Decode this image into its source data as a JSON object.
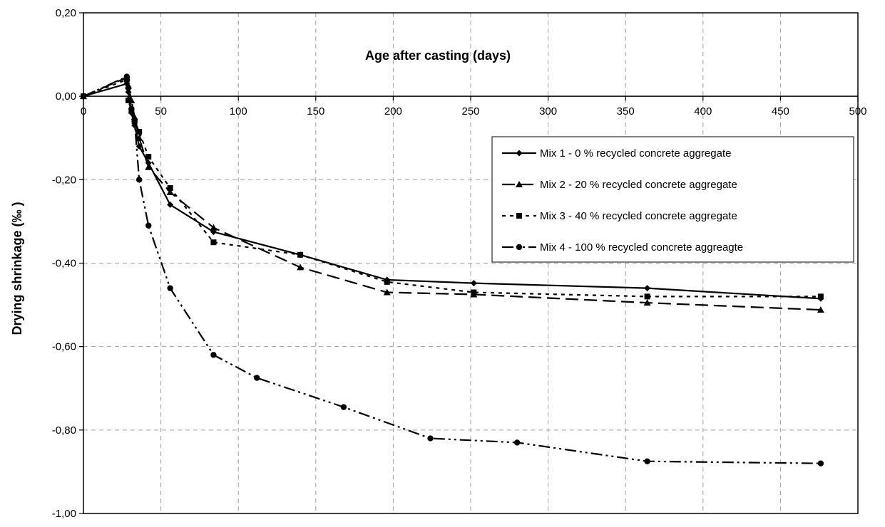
{
  "chart_data": {
    "type": "line",
    "title": "",
    "xlabel": "Age after casting (days)",
    "ylabel": "Drying shrinkage (‰ )",
    "xlim": [
      0,
      500
    ],
    "ylim": [
      -1.0,
      0.2
    ],
    "x_ticks": [
      0,
      50,
      100,
      150,
      200,
      250,
      300,
      350,
      400,
      450,
      500
    ],
    "x_tick_labels": [
      "0",
      "50",
      "100",
      "150",
      "200",
      "250",
      "300",
      "350",
      "400",
      "450",
      "500"
    ],
    "y_ticks": [
      0.2,
      0.0,
      -0.2,
      -0.4,
      -0.6,
      -0.8,
      -1.0
    ],
    "y_tick_labels": [
      "0,20",
      "0,00",
      "-0,20",
      "-0,40",
      "-0,60",
      "-0,80",
      "-1,00"
    ],
    "grid": true,
    "legend_position": "upper-right",
    "series": [
      {
        "name": "Mix 1 - 0 % recycled concrete aggregate",
        "marker": "diamond",
        "line_style": "solid",
        "x": [
          0,
          28,
          29,
          31,
          33,
          36,
          42,
          56,
          84,
          140,
          196,
          252,
          364,
          476
        ],
        "y": [
          0.0,
          0.03,
          0.01,
          -0.04,
          -0.07,
          -0.12,
          -0.16,
          -0.26,
          -0.325,
          -0.38,
          -0.44,
          -0.448,
          -0.46,
          -0.485
        ]
      },
      {
        "name": "Mix 2 - 20 % recycled concrete aggregate",
        "marker": "triangle",
        "line_style": "long-dash",
        "x": [
          0,
          28,
          29,
          31,
          33,
          36,
          42,
          56,
          84,
          140,
          196,
          252,
          364,
          476
        ],
        "y": [
          0.0,
          0.045,
          0.025,
          -0.01,
          -0.05,
          -0.1,
          -0.17,
          -0.23,
          -0.315,
          -0.41,
          -0.47,
          -0.475,
          -0.495,
          -0.512
        ]
      },
      {
        "name": "Mix 3 - 40 % recycled concrete aggregate",
        "marker": "square",
        "line_style": "dotted",
        "x": [
          0,
          28,
          29,
          31,
          33,
          36,
          42,
          56,
          84,
          140,
          196,
          252,
          364,
          476
        ],
        "y": [
          0.0,
          0.04,
          -0.01,
          -0.035,
          -0.06,
          -0.085,
          -0.145,
          -0.22,
          -0.35,
          -0.38,
          -0.445,
          -0.47,
          -0.48,
          -0.48
        ]
      },
      {
        "name": "Mix 4 - 100 % recycled concrete aggreagte",
        "marker": "circle",
        "line_style": "dash-dot-dot",
        "x": [
          0,
          28,
          29,
          31,
          33,
          36,
          42,
          56,
          84,
          112,
          168,
          224,
          280,
          364,
          476
        ],
        "y": [
          0.0,
          0.047,
          0.02,
          -0.03,
          -0.06,
          -0.2,
          -0.31,
          -0.46,
          -0.62,
          -0.675,
          -0.745,
          -0.82,
          -0.83,
          -0.875,
          -0.88
        ]
      }
    ]
  }
}
